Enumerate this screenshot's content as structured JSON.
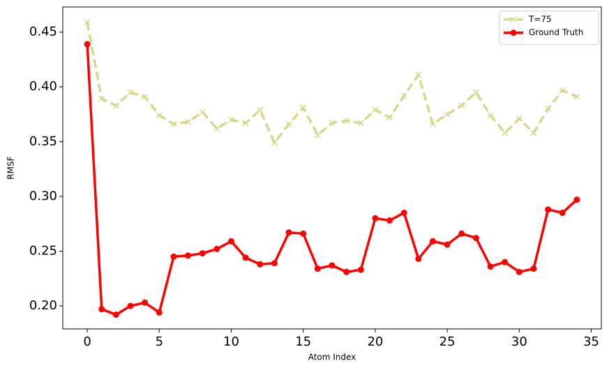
{
  "chart_data": {
    "type": "line",
    "x_label": "Atom Index",
    "y_label": "RMSF",
    "x": [
      0,
      1,
      2,
      3,
      4,
      5,
      6,
      7,
      8,
      9,
      10,
      11,
      12,
      13,
      14,
      15,
      16,
      17,
      18,
      19,
      20,
      21,
      22,
      23,
      24,
      25,
      26,
      27,
      28,
      29,
      30,
      31,
      32,
      33,
      34
    ],
    "series": [
      {
        "name": "T=75",
        "color": "#d8d88c",
        "dash": true,
        "marker": "x",
        "values": [
          0.459,
          0.389,
          0.383,
          0.395,
          0.391,
          0.374,
          0.366,
          0.368,
          0.377,
          0.362,
          0.37,
          0.367,
          0.379,
          0.349,
          0.366,
          0.381,
          0.356,
          0.367,
          0.369,
          0.367,
          0.379,
          0.372,
          0.392,
          0.411,
          0.366,
          0.375,
          0.383,
          0.395,
          0.374,
          0.358,
          0.371,
          0.358,
          0.38,
          0.397,
          0.391
        ]
      },
      {
        "name": "Ground Truth",
        "color": "#ff0000",
        "dash": false,
        "marker": "o",
        "values": [
          0.439,
          0.197,
          0.192,
          0.2,
          0.203,
          0.194,
          0.245,
          0.246,
          0.248,
          0.252,
          0.259,
          0.244,
          0.238,
          0.239,
          0.267,
          0.266,
          0.234,
          0.237,
          0.231,
          0.233,
          0.28,
          0.278,
          0.285,
          0.243,
          0.259,
          0.256,
          0.266,
          0.262,
          0.236,
          0.24,
          0.231,
          0.234,
          0.288,
          0.285,
          0.297
        ]
      }
    ],
    "xlim": [
      -1.7,
      35.7
    ],
    "ylim": [
      0.179,
      0.473
    ],
    "xticks": [
      0,
      5,
      10,
      15,
      20,
      25,
      30,
      35
    ],
    "yticks": [
      {
        "value": 0.2,
        "label": "0.20"
      },
      {
        "value": 0.25,
        "label": "0.25"
      },
      {
        "value": 0.3,
        "label": "0.30"
      },
      {
        "value": 0.35,
        "label": "0.35"
      },
      {
        "value": 0.4,
        "label": "0.40"
      },
      {
        "value": 0.45,
        "label": "0.45"
      }
    ],
    "grid": false,
    "legend": "upper right"
  }
}
